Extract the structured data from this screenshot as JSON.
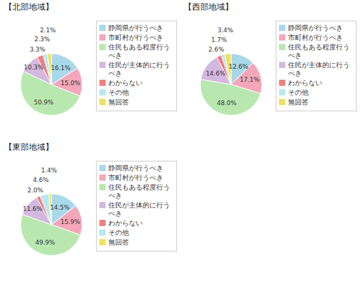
{
  "chart_data": [
    {
      "type": "pie",
      "title": "【北部地域】",
      "categories": [
        "静岡県が行うべき",
        "市町村が行うべき",
        "住民もある程度行う\nべき",
        "住民が主体的に行う\nべき",
        "わからない",
        "その他",
        "無回答"
      ],
      "values": [
        16.1,
        15.0,
        50.9,
        10.3,
        3.3,
        2.3,
        2.1
      ],
      "value_labels": [
        "16.1%",
        "15.0%",
        "50.9%",
        "10.3%",
        "3.3%",
        "2.3%",
        "2.1%"
      ],
      "colors": [
        "#a8d8ea",
        "#f4a7b9",
        "#b8e8b0",
        "#d4b8e0",
        "#f08080",
        "#b8e8f0",
        "#f0e060"
      ],
      "data_labels": true,
      "legend": "right"
    },
    {
      "type": "pie",
      "title": "【西部地域】",
      "categories": [
        "静岡県が行うべき",
        "市町村が行うべき",
        "住民もある程度行う\nべき",
        "住民が主体的に行う\nべき",
        "わからない",
        "その他",
        "無回答"
      ],
      "values": [
        12.6,
        17.1,
        48.0,
        14.6,
        2.6,
        1.7,
        3.4
      ],
      "value_labels": [
        "12.6%",
        "17.1%",
        "48.0%",
        "14.6%",
        "2.6%",
        "1.7%",
        "3.4%"
      ],
      "colors": [
        "#a8d8ea",
        "#f4a7b9",
        "#b8e8b0",
        "#d4b8e0",
        "#f08080",
        "#b8e8f0",
        "#f0e060"
      ],
      "data_labels": true,
      "legend": "right"
    },
    {
      "type": "pie",
      "title": "【東部地域】",
      "categories": [
        "静岡県が行うべき",
        "市町村が行うべき",
        "住民もある程度行う\nべき",
        "住民が主体的に行う\nべき",
        "わからない",
        "その他",
        "無回答"
      ],
      "values": [
        14.5,
        15.9,
        49.9,
        11.6,
        2.0,
        4.6,
        1.4
      ],
      "value_labels": [
        "14.5%",
        "15.9%",
        "49.9%",
        "11.6%",
        "2.0%",
        "4.6%",
        "1.4%"
      ],
      "colors": [
        "#a8d8ea",
        "#f4a7b9",
        "#b8e8b0",
        "#d4b8e0",
        "#f08080",
        "#b8e8f0",
        "#f0e060"
      ],
      "data_labels": true,
      "legend": "right"
    }
  ]
}
